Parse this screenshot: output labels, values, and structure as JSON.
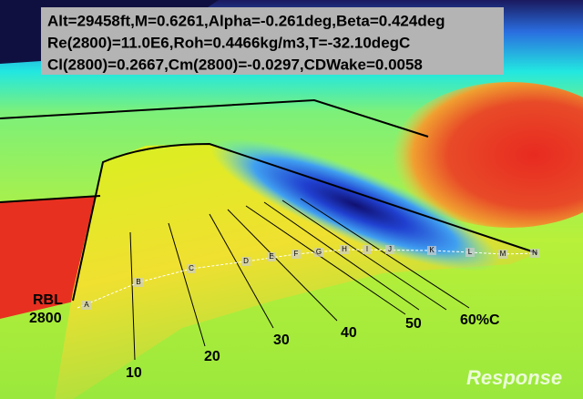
{
  "info_box": {
    "lines": [
      "Alt=29458ft,M=0.6261,Alpha=-0.261deg,Beta=0.424deg",
      "Re(2800)=11.0E6,Roh=0.4466kg/m3,T=-32.10degC",
      "Cl(2800)=0.2667,Cm(2800)=-0.0297,CDWake=0.0058"
    ]
  },
  "rbl_label": [
    "RBL",
    "2800"
  ],
  "chord_labels": [
    "10",
    "20",
    "30",
    "40",
    "50",
    "60%C"
  ],
  "stations": [
    "A",
    "B",
    "C",
    "D",
    "E",
    "F",
    "G",
    "H",
    "I",
    "J",
    "K",
    "L",
    "M",
    "N"
  ],
  "watermark": "Response"
}
